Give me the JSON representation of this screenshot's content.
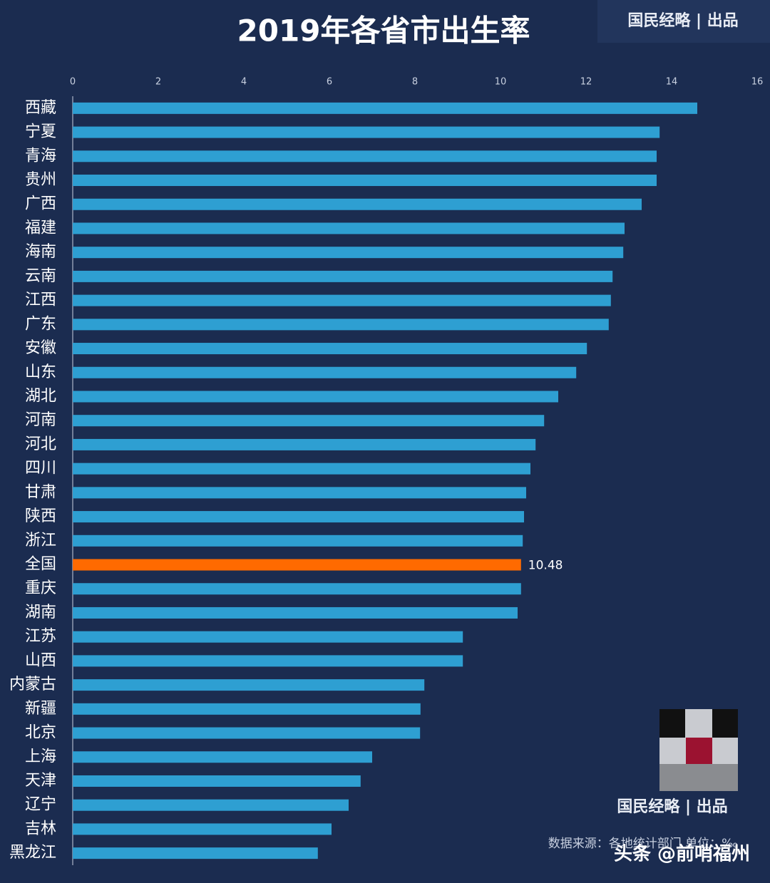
{
  "chart_data": {
    "type": "bar",
    "orientation": "horizontal",
    "title": "2019年各省市出生率",
    "brand": "国民经略 | 出品",
    "source": "数据来源：各地统计部门 单位：‰",
    "watermark": "头条 @前哨福州",
    "categories": [
      "西藏",
      "宁夏",
      "青海",
      "贵州",
      "广西",
      "福建",
      "海南",
      "云南",
      "江西",
      "广东",
      "安徽",
      "山东",
      "湖北",
      "河南",
      "河北",
      "四川",
      "甘肃",
      "陕西",
      "浙江",
      "全国",
      "重庆",
      "湖南",
      "江苏",
      "山西",
      "内蒙古",
      "新疆",
      "北京",
      "上海",
      "天津",
      "辽宁",
      "吉林",
      "黑龙江"
    ],
    "values": [
      14.6,
      13.72,
      13.65,
      13.65,
      13.3,
      12.9,
      12.87,
      12.62,
      12.58,
      12.53,
      12.02,
      11.77,
      11.35,
      11.02,
      10.82,
      10.7,
      10.6,
      10.55,
      10.52,
      10.48,
      10.48,
      10.4,
      9.12,
      9.12,
      8.22,
      8.13,
      8.12,
      7.0,
      6.73,
      6.45,
      6.05,
      5.73
    ],
    "value_labels": [
      null,
      null,
      null,
      null,
      null,
      null,
      null,
      null,
      null,
      null,
      null,
      null,
      null,
      null,
      null,
      null,
      null,
      null,
      null,
      "10.48",
      null,
      null,
      null,
      null,
      null,
      null,
      null,
      null,
      null,
      null,
      null,
      null
    ],
    "colors": [
      "#2e9fd2",
      "#2e9fd2",
      "#2e9fd2",
      "#2e9fd2",
      "#2e9fd2",
      "#2e9fd2",
      "#2e9fd2",
      "#2e9fd2",
      "#2e9fd2",
      "#2e9fd2",
      "#2e9fd2",
      "#2e9fd2",
      "#2e9fd2",
      "#2e9fd2",
      "#2e9fd2",
      "#2e9fd2",
      "#2e9fd2",
      "#2e9fd2",
      "#2e9fd2",
      "#ff6a00",
      "#2e9fd2",
      "#2e9fd2",
      "#2e9fd2",
      "#2e9fd2",
      "#2e9fd2",
      "#2e9fd2",
      "#2e9fd2",
      "#2e9fd2",
      "#2e9fd2",
      "#2e9fd2",
      "#2e9fd2",
      "#2e9fd2"
    ],
    "xlim": [
      0,
      16
    ],
    "xticks": [
      0,
      2,
      4,
      6,
      8,
      10,
      12,
      14,
      16
    ],
    "grid": false
  }
}
